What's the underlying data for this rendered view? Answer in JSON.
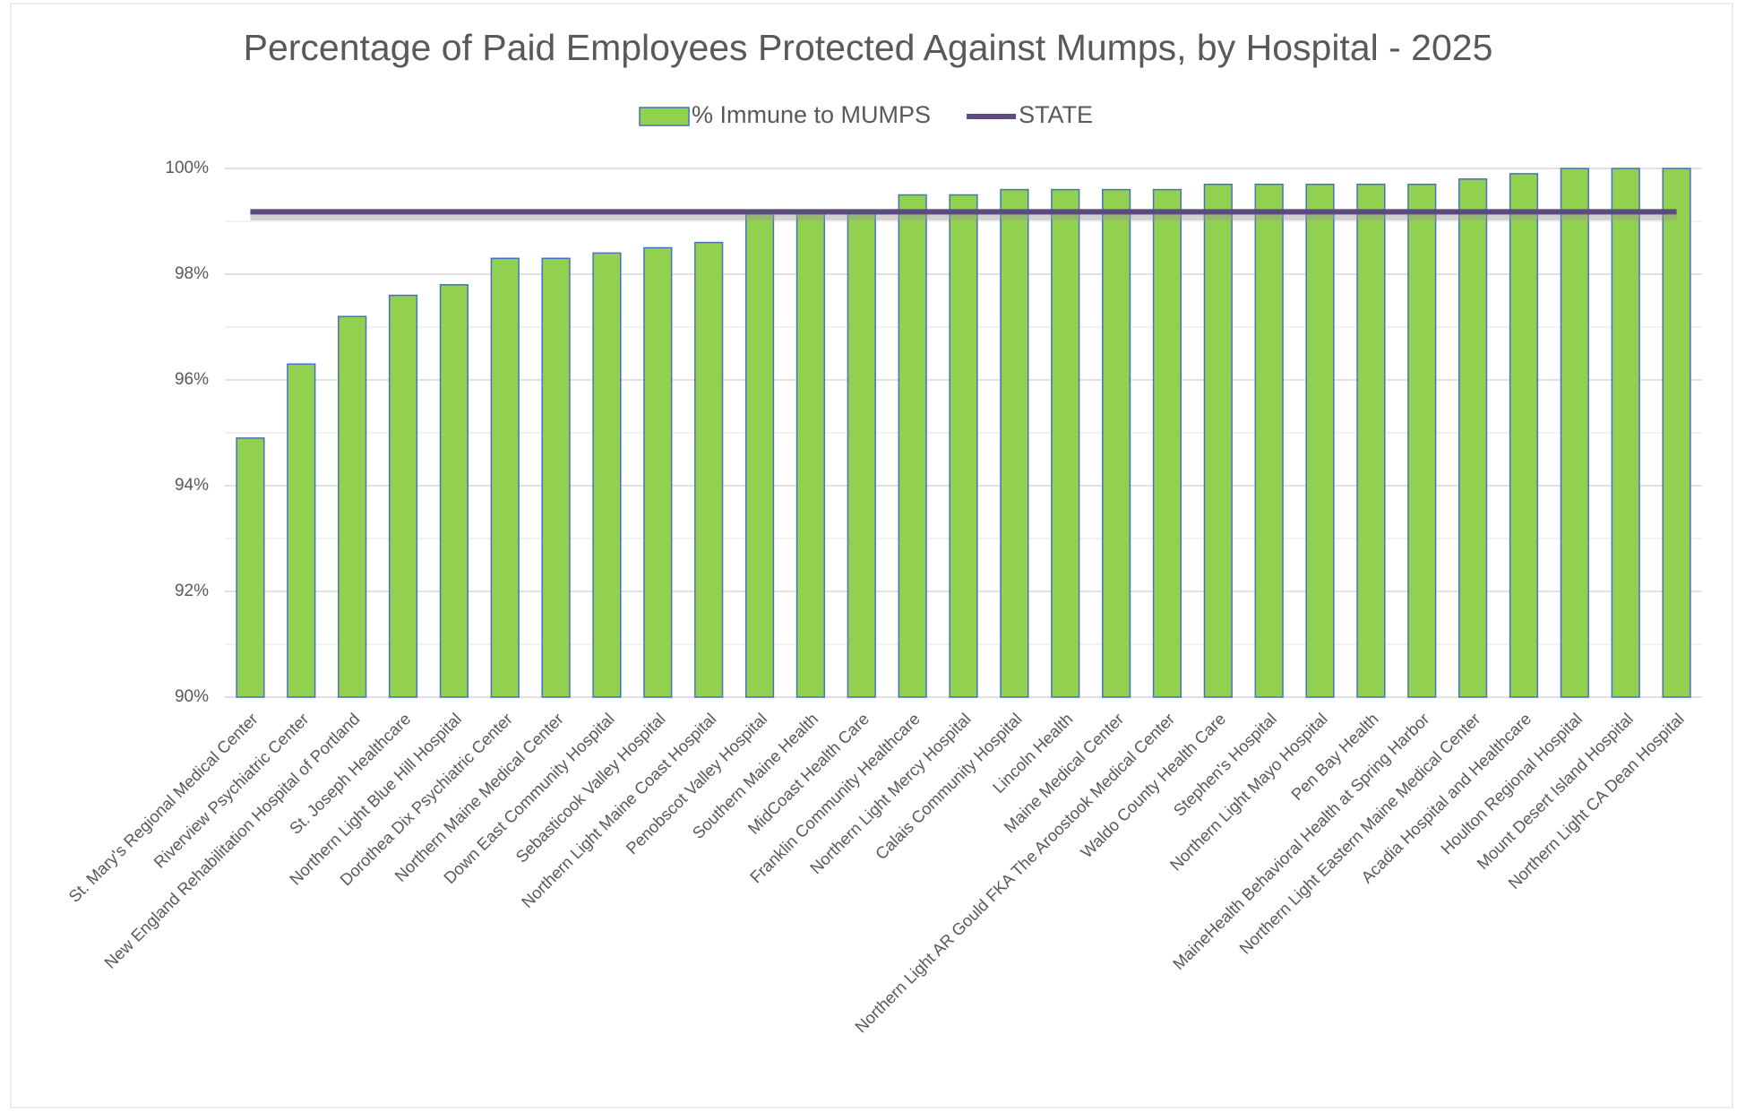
{
  "chart_data": {
    "type": "bar",
    "title": "Percentage of Paid Employees Protected Against Mumps, by Hospital - 2025",
    "categories": [
      "St. Mary's Regional Medical Center",
      "Riverview Psychiatric Center",
      "New England Rehabilitation Hospital of Portland",
      "St. Joseph Healthcare",
      "Northern Light Blue Hill Hospital",
      "Dorothea Dix Psychiatric Center",
      "Northern Maine Medical Center",
      "Down East Community Hospital",
      "Sebasticook Valley Hospital",
      "Northern Light Maine Coast Hospital",
      "Penobscot Valley Hospital",
      "Southern Maine Health",
      "MidCoast Health Care",
      "Franklin Community Healthcare",
      "Northern Light Mercy Hospital",
      "Calais Community Hospital",
      "Lincoln Health",
      "Maine Medical Center",
      "Northern Light AR Gould FKA The Aroostook Medical Center",
      "Waldo County Health Care",
      "Stephen's Hospital",
      "Northern Light Mayo Hospital",
      "Pen Bay Health",
      "MaineHealth Behavioral Health at Spring Harbor",
      "Northern Light Eastern Maine Medical Center",
      "Acadia Hospital and Healthcare",
      "Houlton Regional Hospital",
      "Mount Desert Island Hospital",
      "Northern Light CA Dean Hospital"
    ],
    "series": [
      {
        "name": "% Immune to MUMPS",
        "type": "bar",
        "color": "#92d050",
        "edge": "#4472c4",
        "values": [
          94.9,
          96.3,
          97.2,
          97.6,
          97.8,
          98.3,
          98.3,
          98.4,
          98.5,
          98.6,
          99.2,
          99.2,
          99.2,
          99.5,
          99.5,
          99.6,
          99.6,
          99.6,
          99.6,
          99.7,
          99.7,
          99.7,
          99.7,
          99.7,
          99.8,
          99.9,
          100,
          100,
          100
        ]
      },
      {
        "name": "STATE",
        "type": "line",
        "color": "#5b4a7e",
        "values": [
          99.18,
          99.18,
          99.18,
          99.18,
          99.18,
          99.18,
          99.18,
          99.18,
          99.18,
          99.18,
          99.18,
          99.18,
          99.18,
          99.18,
          99.18,
          99.18,
          99.18,
          99.18,
          99.18,
          99.18,
          99.18,
          99.18,
          99.18,
          99.18,
          99.18,
          99.18,
          99.18,
          99.18,
          99.18
        ]
      }
    ],
    "ylim": [
      90,
      100
    ],
    "yticks": [
      {
        "value": 90,
        "label": "90%"
      },
      {
        "value": 92,
        "label": "92%"
      },
      {
        "value": 94,
        "label": "94%"
      },
      {
        "value": 96,
        "label": "96%"
      },
      {
        "value": 98,
        "label": "98%"
      },
      {
        "value": 100,
        "label": "100%"
      }
    ],
    "grid": true,
    "legend": "top"
  }
}
